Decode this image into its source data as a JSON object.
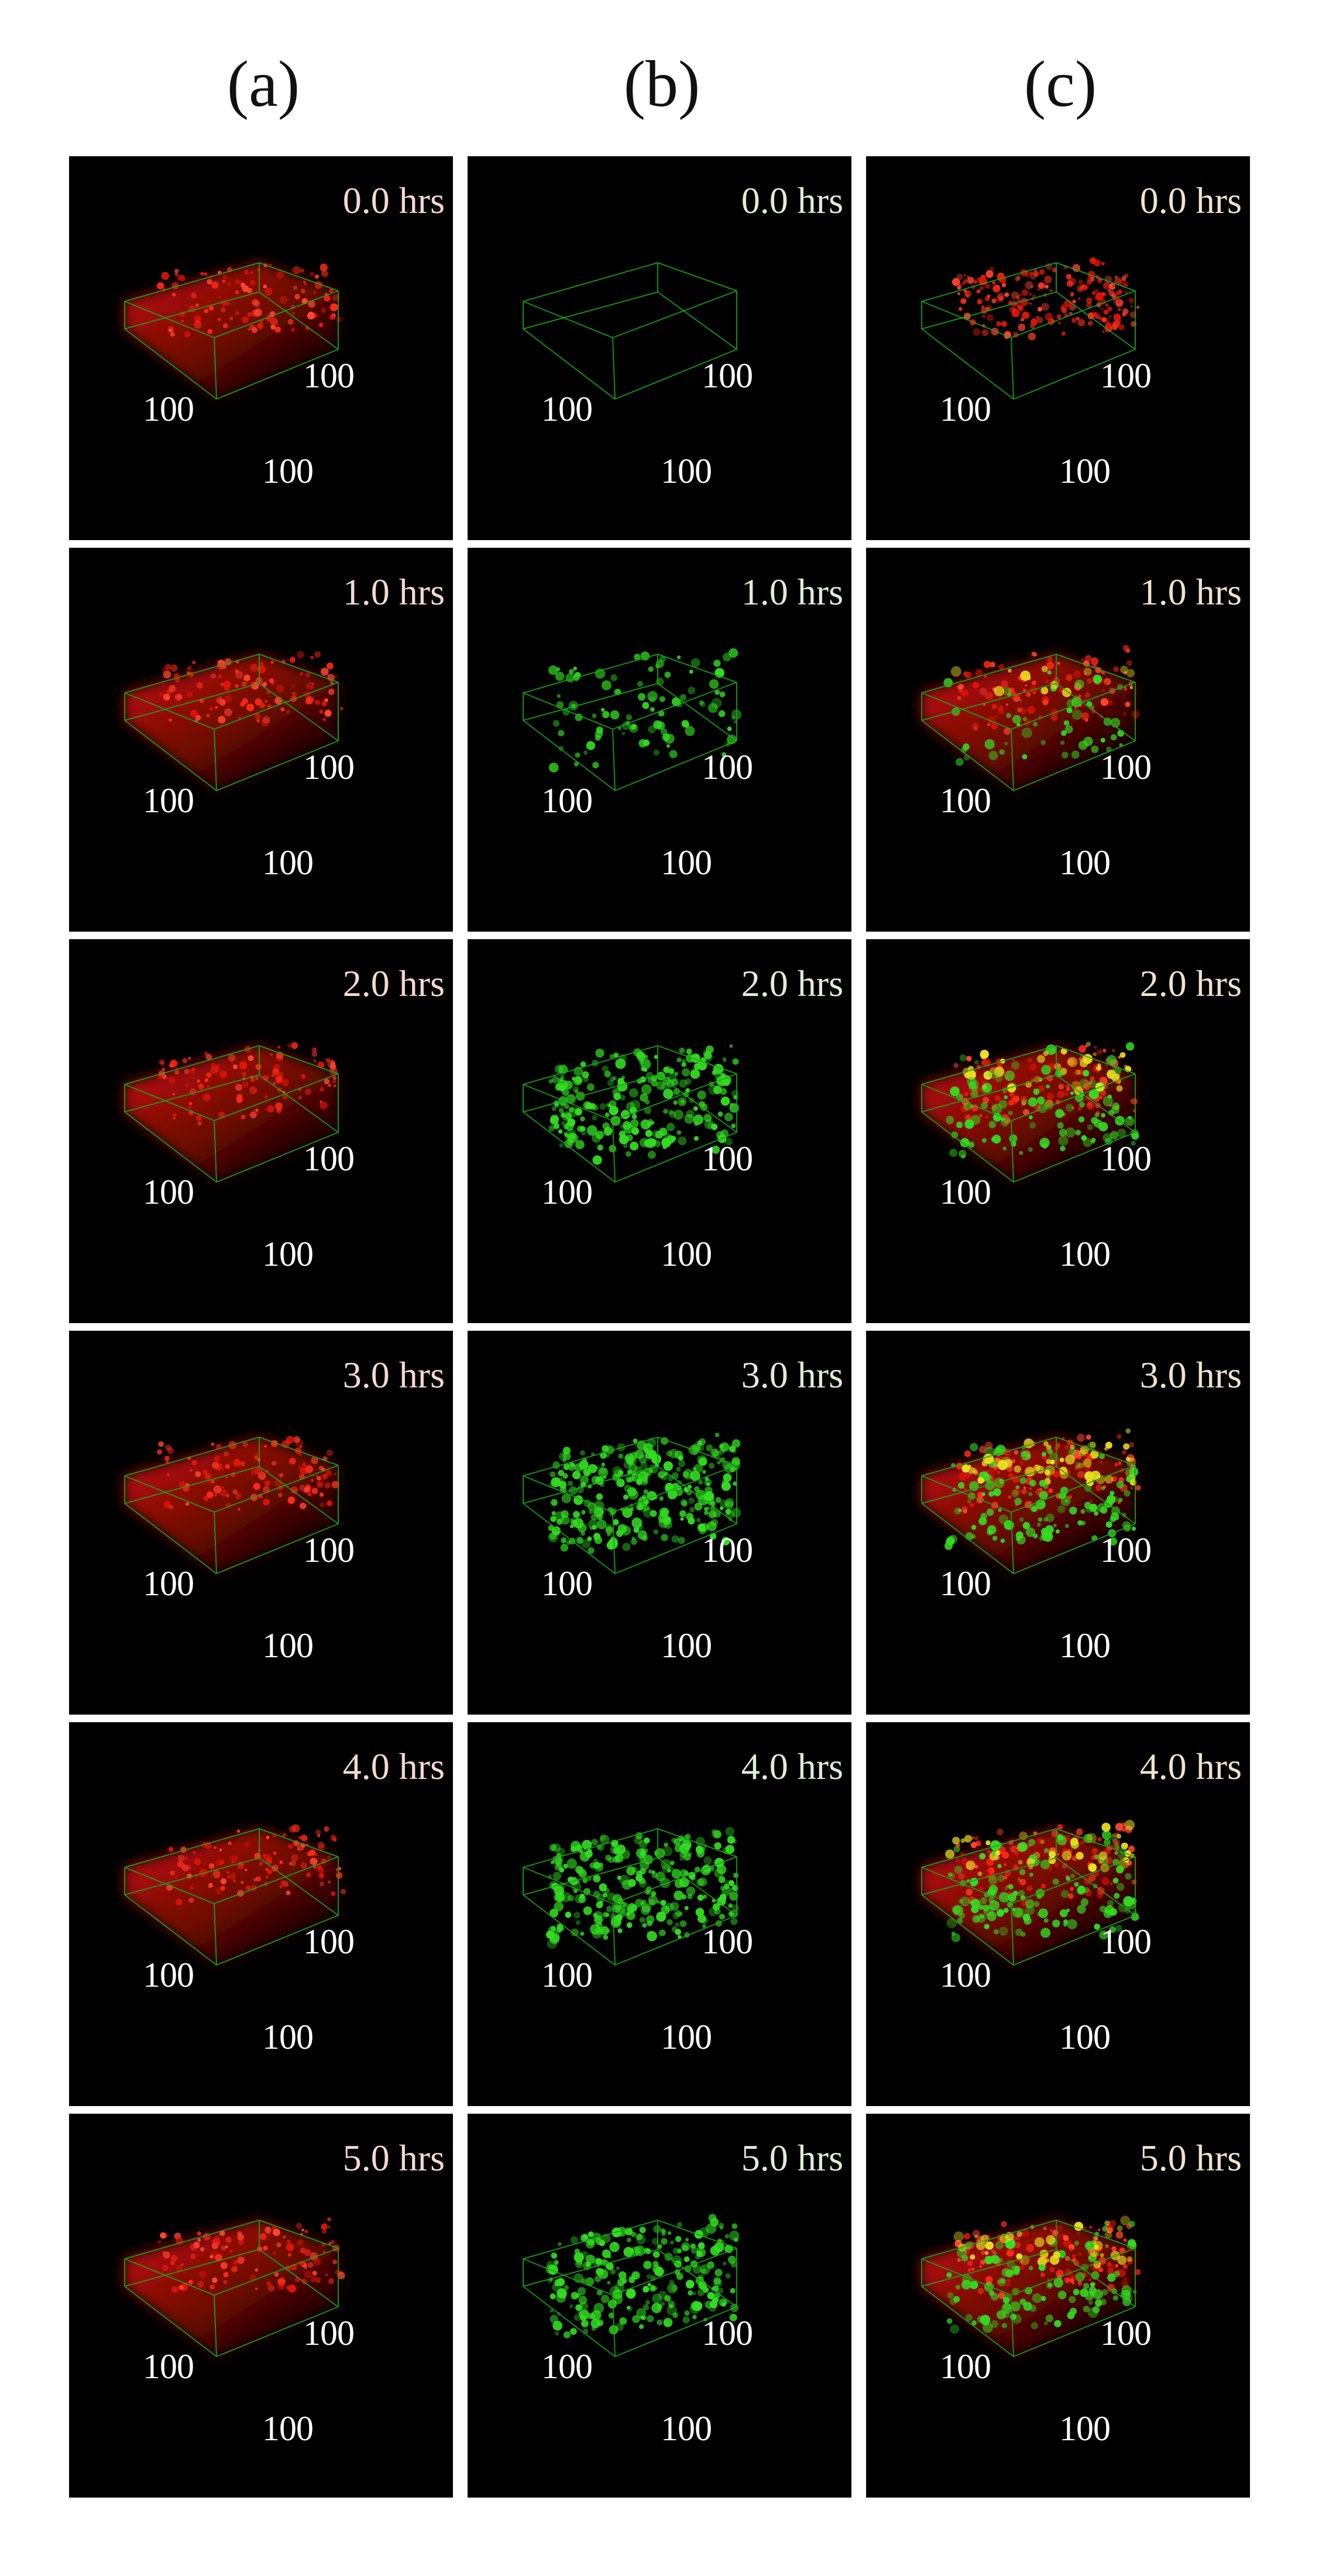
{
  "columns": [
    {
      "label": "(a)",
      "channel": "red"
    },
    {
      "label": "(b)",
      "channel": "green"
    },
    {
      "label": "(c)",
      "channel": "merged"
    }
  ],
  "rows": [
    {
      "time": "0.0 hrs",
      "green_level": 0.0
    },
    {
      "time": "1.0 hrs",
      "green_level": 0.3
    },
    {
      "time": "2.0 hrs",
      "green_level": 0.75
    },
    {
      "time": "3.0 hrs",
      "green_level": 0.9
    },
    {
      "time": "4.0 hrs",
      "green_level": 0.85
    },
    {
      "time": "5.0 hrs",
      "green_level": 0.75
    }
  ],
  "axis_labels": {
    "left": "100",
    "right": "100",
    "bottom": "100"
  },
  "colors": {
    "background": "#ffffff",
    "panel": "#000000",
    "red_channel": "#e0160a",
    "green_channel": "#33dd22",
    "box_edges": "#1aa81a"
  }
}
